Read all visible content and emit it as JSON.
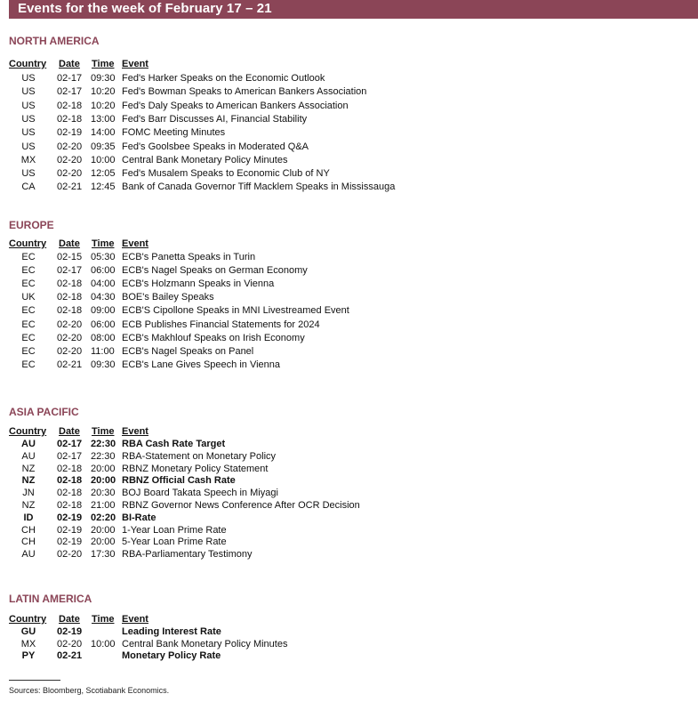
{
  "title": "Events for the week of February 17 – 21",
  "columns": {
    "country": "Country",
    "date": "Date",
    "time": "Time",
    "event": "Event"
  },
  "sections": [
    {
      "region": "NORTH AMERICA",
      "rows": [
        {
          "country": "US",
          "date": "02-17",
          "time": "09:30",
          "event": "Fed's Harker Speaks on the Economic Outlook",
          "bold": false
        },
        {
          "country": "US",
          "date": "02-17",
          "time": "10:20",
          "event": "Fed's Bowman Speaks to American Bankers Association",
          "bold": false
        },
        {
          "country": "US",
          "date": "02-18",
          "time": "10:20",
          "event": "Fed's Daly Speaks to American Bankers Association",
          "bold": false
        },
        {
          "country": "US",
          "date": "02-18",
          "time": "13:00",
          "event": "Fed's Barr Discusses AI, Financial Stability",
          "bold": false
        },
        {
          "country": "US",
          "date": "02-19",
          "time": "14:00",
          "event": "FOMC Meeting Minutes",
          "bold": false
        },
        {
          "country": "US",
          "date": "02-20",
          "time": "09:35",
          "event": "Fed's Goolsbee Speaks in Moderated Q&A",
          "bold": false
        },
        {
          "country": "MX",
          "date": "02-20",
          "time": "10:00",
          "event": "Central Bank Monetary Policy Minutes",
          "bold": false
        },
        {
          "country": "US",
          "date": "02-20",
          "time": "12:05",
          "event": "Fed's Musalem Speaks to Economic Club of NY",
          "bold": false
        },
        {
          "country": "CA",
          "date": "02-21",
          "time": "12:45",
          "event": "Bank of Canada Governor Tiff Macklem Speaks in Mississauga",
          "bold": false
        }
      ]
    },
    {
      "region": "EUROPE",
      "rows": [
        {
          "country": "EC",
          "date": "02-15",
          "time": "05:30",
          "event": "ECB's Panetta Speaks in Turin",
          "bold": false
        },
        {
          "country": "EC",
          "date": "02-17",
          "time": "06:00",
          "event": "ECB's Nagel Speaks on German Economy",
          "bold": false
        },
        {
          "country": "EC",
          "date": "02-18",
          "time": "04:00",
          "event": "ECB's Holzmann Speaks in Vienna",
          "bold": false
        },
        {
          "country": "UK",
          "date": "02-18",
          "time": "04:30",
          "event": "BOE's Bailey Speaks",
          "bold": false
        },
        {
          "country": "EC",
          "date": "02-18",
          "time": "09:00",
          "event": "ECB'S Cipollone Speaks in MNI Livestreamed Event",
          "bold": false
        },
        {
          "country": "EC",
          "date": "02-20",
          "time": "06:00",
          "event": "ECB Publishes Financial Statements for 2024",
          "bold": false
        },
        {
          "country": "EC",
          "date": "02-20",
          "time": "08:00",
          "event": "ECB's Makhlouf Speaks on Irish Economy",
          "bold": false
        },
        {
          "country": "EC",
          "date": "02-20",
          "time": "11:00",
          "event": "ECB's Nagel Speaks on Panel",
          "bold": false
        },
        {
          "country": "EC",
          "date": "02-21",
          "time": "09:30",
          "event": "ECB's Lane Gives Speech in Vienna",
          "bold": false
        }
      ]
    },
    {
      "region": "ASIA PACIFIC",
      "rows": [
        {
          "country": "AU",
          "date": "02-17",
          "time": "22:30",
          "event": "RBA Cash Rate Target",
          "bold": true
        },
        {
          "country": "AU",
          "date": "02-17",
          "time": "22:30",
          "event": "RBA-Statement on Monetary Policy",
          "bold": false
        },
        {
          "country": "NZ",
          "date": "02-18",
          "time": "20:00",
          "event": "RBNZ Monetary Policy Statement",
          "bold": false
        },
        {
          "country": "NZ",
          "date": "02-18",
          "time": "20:00",
          "event": "RBNZ Official Cash Rate",
          "bold": true
        },
        {
          "country": "JN",
          "date": "02-18",
          "time": "20:30",
          "event": "BOJ Board Takata Speech in Miyagi",
          "bold": false
        },
        {
          "country": "NZ",
          "date": "02-18",
          "time": "21:00",
          "event": "RBNZ Governor News Conference After OCR Decision",
          "bold": false
        },
        {
          "country": "ID",
          "date": "02-19",
          "time": "02:20",
          "event": "BI-Rate",
          "bold": true
        },
        {
          "country": "CH",
          "date": "02-19",
          "time": "20:00",
          "event": "1-Year Loan Prime Rate",
          "bold": false
        },
        {
          "country": "CH",
          "date": "02-19",
          "time": "20:00",
          "event": "5-Year Loan Prime Rate",
          "bold": false
        },
        {
          "country": "AU",
          "date": "02-20",
          "time": "17:30",
          "event": "RBA-Parliamentary Testimony",
          "bold": false
        }
      ]
    },
    {
      "region": "LATIN AMERICA",
      "rows": [
        {
          "country": "GU",
          "date": "02-19",
          "time": "",
          "event": "Leading Interest Rate",
          "bold": true
        },
        {
          "country": "MX",
          "date": "02-20",
          "time": "10:00",
          "event": "Central Bank Monetary Policy Minutes",
          "bold": false
        },
        {
          "country": "PY",
          "date": "02-21",
          "time": "",
          "event": "Monetary Policy Rate",
          "bold": true
        }
      ]
    }
  ],
  "sources": "Sources: Bloomberg, Scotiabank Economics.",
  "colors": {
    "accent": "#8b4557"
  }
}
